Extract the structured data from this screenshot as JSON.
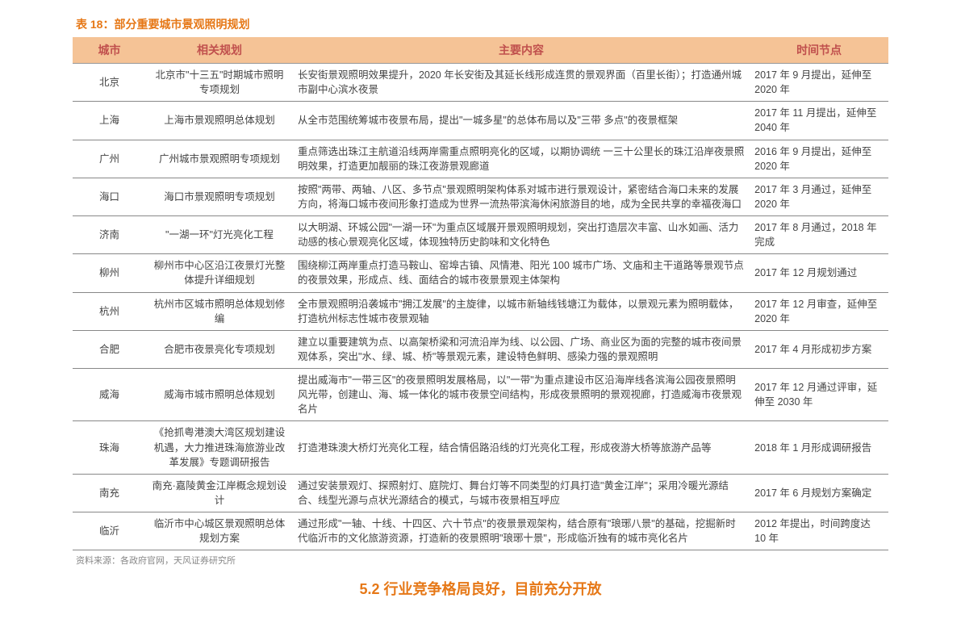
{
  "title": "表 18：部分重要城市景观照明规划",
  "columns": [
    "城市",
    "相关规划",
    "主要内容",
    "时间节点"
  ],
  "rows": [
    {
      "city": "北京",
      "plan": "北京市\"十三五\"时期城市照明专项规划",
      "content": "长安街景观照明效果提升，2020 年长安街及其延长线形成连贯的景观界面（百里长街）；打造通州城市副中心滨水夜景",
      "time": "2017 年 9 月提出，延伸至 2020 年"
    },
    {
      "city": "上海",
      "plan": "上海市景观照明总体规划",
      "content": "从全市范围统筹城市夜景布局，提出\"一城多星\"的总体布局以及\"三带  多点\"的夜景框架",
      "time": "2017 年 11 月提出，延伸至 2040 年"
    },
    {
      "city": "广州",
      "plan": "广州城市景观照明专项规划",
      "content": "重点筛选出珠江主航道沿线两岸需重点照明亮化的区域，以期协调统  一三十公里长的珠江沿岸夜景照明效果，打造更加靓丽的珠江夜游景观廊道",
      "time": "2016 年 9 月提出，延伸至 2020 年"
    },
    {
      "city": "海口",
      "plan": "海口市景观照明专项规划",
      "content": "按照\"两带、两轴、八区、多节点\"景观照明架构体系对城市进行景观设计，紧密结合海口未来的发展方向，将海口城市夜间形象打造成为世界一流热带滨海休闲旅游目的地，成为全民共享的幸福夜海口",
      "time": "2017 年 3 月通过，延伸至 2020 年"
    },
    {
      "city": "济南",
      "plan": "\"一湖一环\"灯光亮化工程",
      "content": "以大明湖、环城公园\"一湖一环\"为重点区域展开景观照明规划，突出打造层次丰富、山水如画、活力动感的核心景观亮化区域，体现独特历史韵味和文化特色",
      "time": "2017 年 8 月通过，2018 年完成"
    },
    {
      "city": "柳州",
      "plan": "柳州市中心区沿江夜景灯光整体提升详细规划",
      "content": "围绕柳江两岸重点打造马鞍山、窑埠古镇、风情港、阳光 100 城市广场、文庙和主干道路等景观节点的夜景效果，形成点、线、面结合的城市夜景景观主体架构",
      "time": "2017 年 12 月规划通过"
    },
    {
      "city": "杭州",
      "plan": "杭州市区城市照明总体规划修编",
      "content": "全市景观照明沿袭城市\"拥江发展\"的主旋律，以城市新轴线钱塘江为载体，以景观元素为照明载体，打造杭州标志性城市夜景观轴",
      "time": "2017 年 12 月审查，延伸至 2020 年"
    },
    {
      "city": "合肥",
      "plan": "合肥市夜景亮化专项规划",
      "content": "建立以重要建筑为点、以高架桥梁和河流沿岸为线、以公园、广场、商业区为面的完整的城市夜间景观体系，突出\"水、绿、城、桥\"等景观元素，建设特色鲜明、感染力强的景观照明",
      "time": "2017 年 4 月形成初步方案"
    },
    {
      "city": "威海",
      "plan": "威海市城市照明总体规划",
      "content": "提出威海市\"一带三区\"的夜景照明发展格局，以\"一带\"为重点建设市区沿海岸线各滨海公园夜景照明风光带，创建山、海、城一体化的城市夜景空间结构，形成夜景照明的景观视廊，打造威海市夜景观名片",
      "time": "2017 年 12 月通过评审，延伸至 2030 年"
    },
    {
      "city": "珠海",
      "plan": "《抢抓粤港澳大湾区规划建设机遇，大力推进珠海旅游业改革发展》专题调研报告",
      "content": "打造港珠澳大桥灯光亮化工程，结合情侣路沿线的灯光亮化工程，形成夜游大桥等旅游产品等",
      "time": "2018 年 1 月形成调研报告"
    },
    {
      "city": "南充",
      "plan": "南充·嘉陵黄金江岸概念规划设计",
      "content": "通过安装景观灯、探照射灯、庭院灯、舞台灯等不同类型的灯具打造\"黄金江岸\"；采用冷暖光源结合、线型光源与点状光源结合的模式，与城市夜景相互呼应",
      "time": "2017 年 6 月规划方案确定"
    },
    {
      "city": "临沂",
      "plan": "临沂市中心城区景观照明总体规划方案",
      "content": "通过形成\"一轴、十线、十四区、六十节点\"的夜景景观架构，结合原有\"琅琊八景\"的基础，挖掘新时代临沂市的文化旅游资源，打造新的夜景照明\"琅琊十景\"，形成临沂独有的城市亮化名片",
      "time": "2012 年提出，时间跨度达 10 年"
    }
  ],
  "source": "资料来源：各政府官网，天风证券研究所",
  "bottom_fragment": "5.2 行业竞争格局良好，目前充分开放"
}
